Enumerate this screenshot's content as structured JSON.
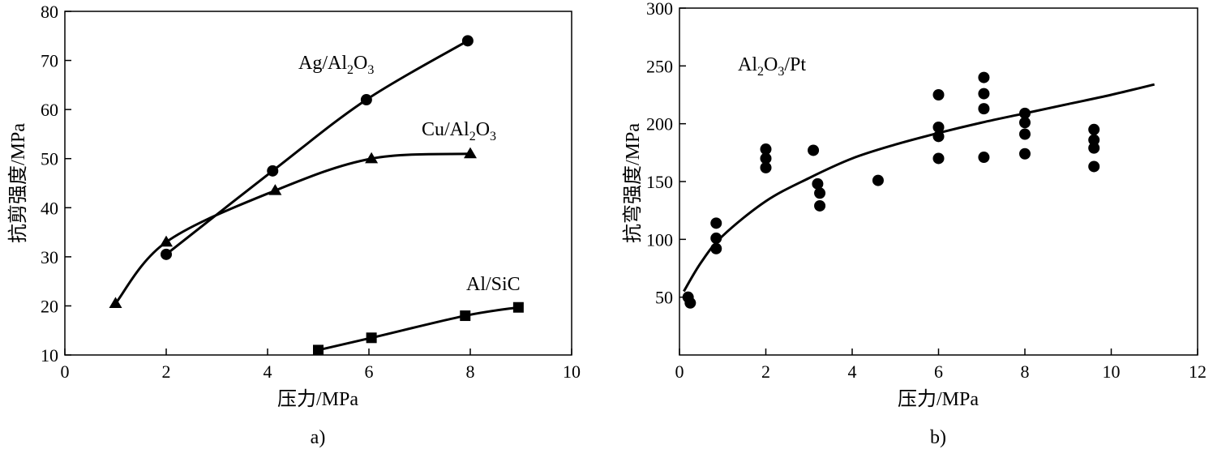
{
  "chart_data": [
    {
      "id": "a",
      "type": "line",
      "caption": "a)",
      "xlabel": "压力/MPa",
      "ylabel": "抗剪强度/MPa",
      "xlim": [
        0,
        10
      ],
      "ylim": [
        10,
        80
      ],
      "xticks": [
        0,
        2,
        4,
        6,
        8,
        10
      ],
      "yticks": [
        10,
        20,
        30,
        40,
        50,
        60,
        70,
        80
      ],
      "grid": false,
      "series": [
        {
          "name": "Ag/Al2O3",
          "label": {
            "pre": "Ag/Al",
            "s1": "2",
            "mid": "O",
            "s2": "3"
          },
          "marker": "circle",
          "x": [
            2.0,
            4.1,
            5.95,
            7.95
          ],
          "y": [
            30.5,
            47.5,
            62,
            74
          ]
        },
        {
          "name": "Cu/Al2O3",
          "label": {
            "pre": "Cu/Al",
            "s1": "2",
            "mid": "O",
            "s2": "3"
          },
          "marker": "triangle",
          "x": [
            1.0,
            2.0,
            4.15,
            6.05,
            8.0
          ],
          "y": [
            20.5,
            33,
            43.5,
            50,
            51
          ]
        },
        {
          "name": "Al/SiC",
          "label": {
            "pre": "Al/SiC",
            "s1": "",
            "mid": "",
            "s2": ""
          },
          "marker": "square",
          "x": [
            5.0,
            6.05,
            7.9,
            8.95
          ],
          "y": [
            11,
            13.5,
            18,
            19.7
          ]
        }
      ]
    },
    {
      "id": "b",
      "type": "scatter",
      "caption": "b)",
      "xlabel": "压力/MPa",
      "ylabel": "抗弯强度/MPa",
      "xlim": [
        0,
        12
      ],
      "ylim": [
        0,
        300
      ],
      "xticks": [
        0,
        2,
        4,
        6,
        8,
        10,
        12
      ],
      "yticks": [
        50,
        100,
        150,
        200,
        250,
        300
      ],
      "grid": false,
      "series": [
        {
          "name": "Al2O3/Pt",
          "label": {
            "pre": "Al",
            "s1": "2",
            "mid": "O",
            "s2": "3/Pt"
          },
          "marker": "circle",
          "points": [
            [
              0.2,
              50
            ],
            [
              0.25,
              45
            ],
            [
              0.85,
              114
            ],
            [
              0.85,
              101
            ],
            [
              0.85,
              92
            ],
            [
              2.0,
              178
            ],
            [
              2.0,
              170
            ],
            [
              2.0,
              162
            ],
            [
              3.1,
              177
            ],
            [
              3.2,
              148
            ],
            [
              3.25,
              140
            ],
            [
              3.25,
              129
            ],
            [
              4.6,
              151
            ],
            [
              6.0,
              225
            ],
            [
              6.0,
              197
            ],
            [
              6.0,
              189
            ],
            [
              6.0,
              170
            ],
            [
              7.05,
              240
            ],
            [
              7.05,
              226
            ],
            [
              7.05,
              213
            ],
            [
              7.05,
              171
            ],
            [
              8.0,
              209
            ],
            [
              8.0,
              201
            ],
            [
              8.0,
              191
            ],
            [
              8.0,
              174
            ],
            [
              9.6,
              195
            ],
            [
              9.6,
              186
            ],
            [
              9.6,
              179
            ],
            [
              9.6,
              163
            ]
          ]
        }
      ],
      "fit_curve": {
        "x": [
          0.1,
          0.5,
          1,
          2,
          3,
          4,
          5,
          6,
          7,
          8,
          9,
          10,
          11
        ],
        "y": [
          55,
          80,
          103,
          133,
          153,
          170,
          182,
          192,
          201,
          209,
          217,
          225,
          234
        ]
      }
    }
  ]
}
